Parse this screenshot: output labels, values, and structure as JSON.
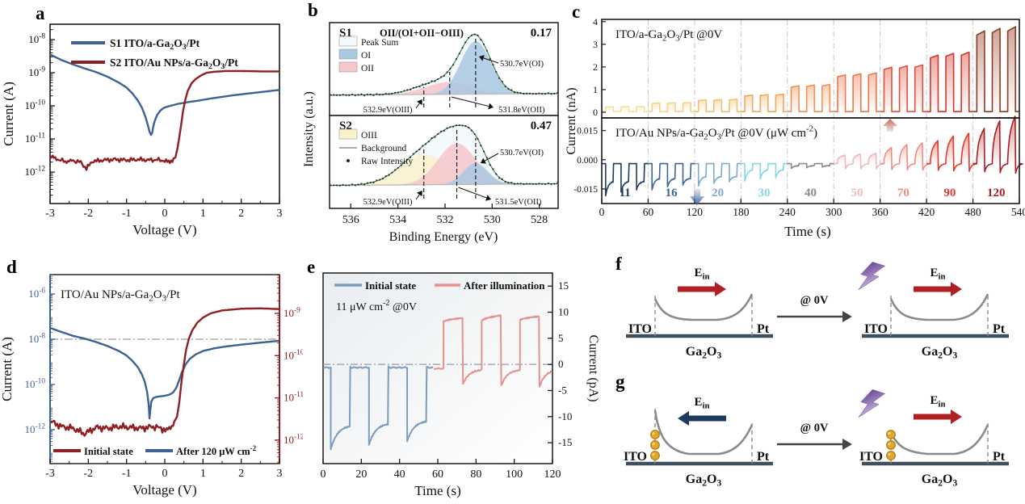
{
  "figure": {
    "background": "#ffffff",
    "panel_letters": [
      "a",
      "b",
      "c",
      "d",
      "e",
      "f",
      "g"
    ]
  },
  "chart_data": [
    {
      "id": "a",
      "type": "line",
      "xlabel": "Voltage (V)",
      "ylabel": "Current (A)",
      "xlim": [
        -3,
        3
      ],
      "xticks": [
        -3,
        -2,
        -1,
        0,
        1,
        2,
        3
      ],
      "ytick_exps": [
        -8,
        -9,
        -10,
        -11,
        -12
      ],
      "ylim_exps": [
        -12.95,
        -7.54
      ],
      "series": [
        {
          "name": "S1   ITO/a-Ga_{2}O_{3}/Pt",
          "color": "#3c6293",
          "points": [
            [
              -3,
              -8.45
            ],
            [
              -2.7,
              -8.62
            ],
            [
              -2.4,
              -8.75
            ],
            [
              -2.1,
              -8.87
            ],
            [
              -1.8,
              -8.98
            ],
            [
              -1.5,
              -9.12
            ],
            [
              -1.2,
              -9.3
            ],
            [
              -1.0,
              -9.45
            ],
            [
              -0.85,
              -9.62
            ],
            [
              -0.7,
              -9.85
            ],
            [
              -0.6,
              -10.05
            ],
            [
              -0.5,
              -10.35
            ],
            [
              -0.44,
              -10.6
            ],
            [
              -0.4,
              -10.78
            ],
            [
              -0.36,
              -10.88
            ],
            [
              -0.33,
              -10.82
            ],
            [
              -0.3,
              -10.62
            ],
            [
              -0.26,
              -10.45
            ],
            [
              -0.2,
              -10.28
            ],
            [
              -0.12,
              -10.15
            ],
            [
              -0.05,
              -10.08
            ],
            [
              0,
              -10.05
            ],
            [
              0.15,
              -10.0
            ],
            [
              0.35,
              -9.94
            ],
            [
              0.6,
              -9.89
            ],
            [
              0.9,
              -9.84
            ],
            [
              1.2,
              -9.78
            ],
            [
              1.5,
              -9.73
            ],
            [
              1.8,
              -9.68
            ],
            [
              2.1,
              -9.64
            ],
            [
              2.4,
              -9.6
            ],
            [
              2.7,
              -9.56
            ],
            [
              3,
              -9.52
            ]
          ]
        },
        {
          "name": "S2   ITO/Au NPs/a-Ga_{2}O_{3}/Pt",
          "color": "#8e1f23",
          "jitter": {
            "amp": 0.07,
            "xmax": 0.25
          },
          "points": [
            [
              -3,
              -11.52
            ],
            [
              -2.8,
              -11.62
            ],
            [
              -2.6,
              -11.68
            ],
            [
              -2.4,
              -11.66
            ],
            [
              -2.2,
              -11.7
            ],
            [
              -2.05,
              -11.9
            ],
            [
              -1.9,
              -11.68
            ],
            [
              -1.6,
              -11.64
            ],
            [
              -1.3,
              -11.62
            ],
            [
              -1.0,
              -11.64
            ],
            [
              -0.7,
              -11.62
            ],
            [
              -0.4,
              -11.64
            ],
            [
              -0.2,
              -11.63
            ],
            [
              0,
              -11.66
            ],
            [
              0.1,
              -11.7
            ],
            [
              0.2,
              -11.64
            ],
            [
              0.28,
              -11.55
            ],
            [
              0.33,
              -11.3
            ],
            [
              0.38,
              -10.95
            ],
            [
              0.43,
              -10.55
            ],
            [
              0.48,
              -10.15
            ],
            [
              0.53,
              -9.85
            ],
            [
              0.6,
              -9.55
            ],
            [
              0.7,
              -9.32
            ],
            [
              0.8,
              -9.2
            ],
            [
              0.95,
              -9.08
            ],
            [
              1.1,
              -9.0
            ],
            [
              1.3,
              -8.97
            ],
            [
              1.6,
              -8.95
            ],
            [
              2.0,
              -8.95
            ],
            [
              2.5,
              -8.96
            ],
            [
              3,
              -8.96
            ]
          ]
        }
      ]
    },
    {
      "id": "b",
      "type": "area",
      "xlabel": "Binding Energy (eV)",
      "ylabel": "Intensity (a.u.)",
      "xticks": [
        536,
        534,
        532,
        530,
        528
      ],
      "xlim": [
        536.9,
        527.2
      ],
      "background_level": [
        0.03,
        0.055
      ],
      "panels": [
        {
          "label": "S1",
          "formula": "OII/(OI+OII−OIII)",
          "ratio": "0.17",
          "legend": [
            {
              "name": "Peak Sum",
              "swatch": "#f3f9fc"
            },
            {
              "name": "OI",
              "swatch": "#a9c9e2"
            },
            {
              "name": "OII",
              "swatch": "#f5c6cb"
            }
          ],
          "peaks": [
            {
              "name": "OIII",
              "center": 532.9,
              "sigma": 0.75,
              "amp": 0.05,
              "color": "#f9f2cc"
            },
            {
              "name": "OII",
              "center": 531.8,
              "sigma": 1.0,
              "amp": 0.2,
              "color": "#f5c6cb"
            },
            {
              "name": "OI",
              "center": 530.7,
              "sigma": 0.63,
              "amp": 0.86,
              "color": "#a9c9e2"
            }
          ],
          "annotations": {
            "oi": "530.7eV(OI)",
            "oii": "531.8eV(OII)",
            "oiii": "532.9eV(OIII)"
          }
        },
        {
          "label": "S2",
          "formula": "",
          "ratio": "0.47",
          "legend": [
            {
              "name": "OIII",
              "swatch": "#f9f2cc"
            },
            {
              "name": "Background",
              "swatch": "line"
            },
            {
              "name": "Raw Intensity",
              "swatch": "dot"
            }
          ],
          "peaks": [
            {
              "name": "OIII",
              "center": 532.9,
              "sigma": 1.0,
              "amp": 0.46,
              "color": "#f9f2cc"
            },
            {
              "name": "OII",
              "center": 531.5,
              "sigma": 0.8,
              "amp": 0.62,
              "color": "#f5c6cb"
            },
            {
              "name": "OI",
              "center": 530.7,
              "sigma": 0.52,
              "amp": 0.32,
              "color": "#a9c9e2"
            }
          ],
          "annotations": {
            "oi": "530.7eV(OI)",
            "oii": "531.5eV(OII)",
            "oiii": "532.9eV(OIII)"
          }
        }
      ]
    },
    {
      "id": "c",
      "type": "line",
      "xlabel": "Time (s)",
      "ylabel": "Current (nA)",
      "xticks": [
        0,
        60,
        120,
        180,
        240,
        300,
        360,
        420,
        480,
        540
      ],
      "titles": [
        "ITO/a-Ga_{2}O_{3}/Pt  @0V",
        "ITO/Au NPs/a-Ga_{2}O_{3}/Pt  @0V  (μW cm^{-2})"
      ],
      "powers": [
        "11",
        "16",
        "20",
        "30",
        "40",
        "50",
        "70",
        "90",
        "120"
      ],
      "top": {
        "yticks": [
          0,
          1,
          2,
          3,
          4
        ],
        "amps": [
          0.25,
          0.42,
          0.56,
          0.78,
          1.2,
          1.7,
          2.05,
          2.6,
          3.7
        ],
        "colors": [
          "#f7e0a0",
          "#f6d489",
          "#f4c070",
          "#f2a95c",
          "#ef9254",
          "#ec764e",
          "#e4503c",
          "#d2372b",
          "#8e3a20"
        ]
      },
      "bottom": {
        "ytick_labels": [
          "0.015",
          "0.000",
          "-0.015"
        ],
        "yticks": [
          0.015,
          0,
          -0.015
        ],
        "baseline": -0.002,
        "neg_min": [
          -0.0185,
          -0.0155,
          -0.0135,
          -0.011,
          -0.0045
        ],
        "neg_rec": [
          -0.011,
          -0.0095,
          -0.0085,
          -0.005,
          -0.003
        ],
        "pos_peaks": [
          0.003,
          0.008,
          0.0125,
          0.0205
        ],
        "colors": [
          "#1e3a5e",
          "#3d6697",
          "#7fa8d2",
          "#86d5e8",
          "#8b8b8b",
          "#f0b9ba",
          "#ee8f7d",
          "#e03a2f",
          "#a91e22"
        ]
      }
    },
    {
      "id": "d",
      "type": "line",
      "title": "ITO/Au NPs/a-Ga_{2}O_{3}/Pt",
      "xlabel": "Voltage (V)",
      "ylabel": "Current (A)",
      "xticks": [
        -3,
        -2,
        -1,
        0,
        1,
        2,
        3
      ],
      "left_tick_exps": [
        -6,
        -8,
        -10,
        -12
      ],
      "right_tick_exps": [
        -9,
        -10,
        -11,
        -12
      ],
      "left_color": "#3c6293",
      "right_color": "#8e1f23",
      "refline_exp": -8,
      "legend": [
        {
          "name": "Initial state",
          "color": "#8e1f23"
        },
        {
          "name": "After 120 μW cm^{-2}",
          "color": "#3c6293"
        }
      ],
      "series": [
        {
          "name": "after",
          "axis": "left",
          "color": "#3c6293",
          "points": [
            [
              -3,
              -7.5
            ],
            [
              -2.7,
              -7.68
            ],
            [
              -2.4,
              -7.85
            ],
            [
              -2.1,
              -7.97
            ],
            [
              -1.8,
              -8.12
            ],
            [
              -1.5,
              -8.3
            ],
            [
              -1.2,
              -8.52
            ],
            [
              -1.0,
              -8.72
            ],
            [
              -0.85,
              -8.95
            ],
            [
              -0.7,
              -9.25
            ],
            [
              -0.6,
              -9.55
            ],
            [
              -0.52,
              -9.9
            ],
            [
              -0.46,
              -10.35
            ],
            [
              -0.42,
              -10.9
            ],
            [
              -0.4,
              -11.5
            ],
            [
              -0.38,
              -11.15
            ],
            [
              -0.35,
              -10.75
            ],
            [
              -0.3,
              -10.6
            ],
            [
              -0.22,
              -10.55
            ],
            [
              -0.1,
              -10.52
            ],
            [
              0,
              -10.5
            ],
            [
              0.12,
              -10.45
            ],
            [
              0.22,
              -10.35
            ],
            [
              0.3,
              -10.15
            ],
            [
              0.38,
              -9.8
            ],
            [
              0.45,
              -9.45
            ],
            [
              0.55,
              -9.1
            ],
            [
              0.65,
              -8.88
            ],
            [
              0.8,
              -8.68
            ],
            [
              1.0,
              -8.52
            ],
            [
              1.3,
              -8.4
            ],
            [
              1.6,
              -8.32
            ],
            [
              2.0,
              -8.24
            ],
            [
              2.5,
              -8.15
            ],
            [
              3,
              -8.07
            ]
          ]
        },
        {
          "name": "initial",
          "axis": "right",
          "color": "#8e1f23",
          "jitter": {
            "amp": 0.09,
            "xmax": 0.3
          },
          "points": [
            [
              -3,
              -11.55
            ],
            [
              -2.7,
              -11.68
            ],
            [
              -2.4,
              -11.72
            ],
            [
              -2.1,
              -11.85
            ],
            [
              -1.8,
              -11.7
            ],
            [
              -1.5,
              -11.72
            ],
            [
              -1.2,
              -11.68
            ],
            [
              -0.9,
              -11.7
            ],
            [
              -0.6,
              -11.72
            ],
            [
              -0.3,
              -11.68
            ],
            [
              -0.1,
              -11.72
            ],
            [
              0.05,
              -11.78
            ],
            [
              0.15,
              -11.68
            ],
            [
              0.25,
              -11.6
            ],
            [
              0.32,
              -11.45
            ],
            [
              0.38,
              -11.1
            ],
            [
              0.44,
              -10.6
            ],
            [
              0.5,
              -10.2
            ],
            [
              0.56,
              -9.85
            ],
            [
              0.63,
              -9.6
            ],
            [
              0.72,
              -9.4
            ],
            [
              0.85,
              -9.22
            ],
            [
              1.0,
              -9.1
            ],
            [
              1.2,
              -9.0
            ],
            [
              1.5,
              -8.93
            ],
            [
              2.0,
              -8.89
            ],
            [
              2.5,
              -8.88
            ],
            [
              3,
              -8.9
            ]
          ]
        }
      ]
    },
    {
      "id": "e",
      "type": "line",
      "xlabel": "Time (s)",
      "ylabel": "Current (pA)",
      "note": "11 μW cm^{-2} @0V",
      "xticks": [
        0,
        20,
        40,
        60,
        80,
        100,
        120
      ],
      "yticks": [
        15,
        10,
        5,
        0,
        -5,
        -10,
        -15
      ],
      "legend": [
        {
          "name": "Initial state",
          "color": "#7e9cc0"
        },
        {
          "name": "After illumination",
          "color": "#e8908e"
        }
      ],
      "blue": {
        "color": "#7e9cc0",
        "baseline": -0.6,
        "on": [
          4,
          24,
          44
        ],
        "min": [
          -16.3,
          -15.4,
          -14.7
        ],
        "rec": [
          -11.6,
          -11.2,
          -10.7
        ],
        "tau": 3.5,
        "range": [
          0,
          58
        ]
      },
      "pink": {
        "color": "#e8908e",
        "baseline": -0.8,
        "on": [
          63,
          83,
          103
        ],
        "start": [
          8.2,
          8.4,
          8.5
        ],
        "end": [
          8.9,
          9.4,
          9.2
        ],
        "under": [
          -4.0,
          -4.3,
          -4.5
        ],
        "tau": 3.0,
        "range": [
          58,
          120
        ]
      }
    },
    {
      "id": "f",
      "type": "diagram",
      "connector_label": "@ 0V",
      "field_label": "E_{in}",
      "electrode_left": "ITO",
      "electrode_right": "Pt",
      "material": "Ga_{2}O_{3}",
      "diagrams": [
        {
          "bolt": false,
          "au_dots": 0,
          "arrow_dir": "right",
          "arrow_color": "#b01f24",
          "left_barrier": "med"
        },
        {
          "bolt": true,
          "au_dots": 0,
          "arrow_dir": "right",
          "arrow_color": "#b01f24",
          "left_barrier": "med"
        }
      ]
    },
    {
      "id": "g",
      "type": "diagram",
      "connector_label": "@ 0V",
      "field_label": "E_{in}",
      "electrode_left": "ITO",
      "electrode_right": "Pt",
      "material": "Ga_{2}O_{3}",
      "diagrams": [
        {
          "bolt": false,
          "au_dots": 3,
          "arrow_dir": "left",
          "arrow_color": "#1f3a5f",
          "left_barrier": "tall"
        },
        {
          "bolt": true,
          "au_dots": 3,
          "arrow_dir": "right",
          "arrow_color": "#b01f24",
          "left_barrier": "small"
        }
      ]
    }
  ]
}
